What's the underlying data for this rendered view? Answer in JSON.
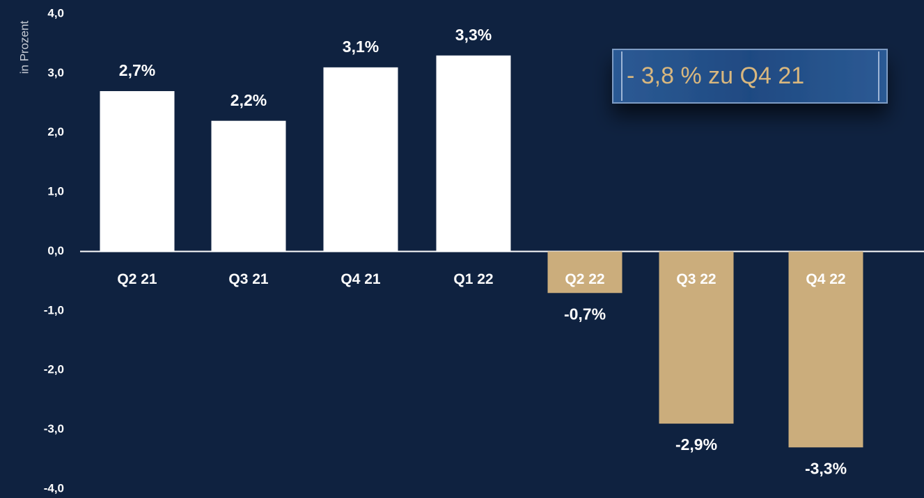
{
  "chart_data": {
    "type": "bar",
    "y_label": "in Prozent",
    "categories": [
      "Q2 21",
      "Q3 21",
      "Q4 21",
      "Q1 22",
      "Q2 22",
      "Q3 22",
      "Q4 22"
    ],
    "values": [
      2.7,
      2.2,
      3.1,
      3.3,
      -0.7,
      -2.9,
      -3.3
    ],
    "value_labels": [
      "2,7%",
      "2,2%",
      "3,1%",
      "3,3%",
      "-0,7%",
      "-2,9%",
      "-3,3%"
    ],
    "colors": [
      "#ffffff",
      "#ffffff",
      "#ffffff",
      "#ffffff",
      "#cbad7c",
      "#cbad7c",
      "#cbad7c"
    ],
    "ylim": [
      -4,
      4
    ],
    "yticks": [
      {
        "value": -4,
        "label": "-4,0"
      },
      {
        "value": -3,
        "label": "-3,0"
      },
      {
        "value": -2,
        "label": "-2,0"
      },
      {
        "value": -1,
        "label": "-1,0"
      },
      {
        "value": 0,
        "label": "0,0"
      },
      {
        "value": 1,
        "label": "1,0"
      },
      {
        "value": 2,
        "label": "2,0"
      },
      {
        "value": 3,
        "label": "3,0"
      },
      {
        "value": 4,
        "label": "4,0"
      }
    ],
    "annotation": "- 3,8 % zu Q4 21"
  }
}
